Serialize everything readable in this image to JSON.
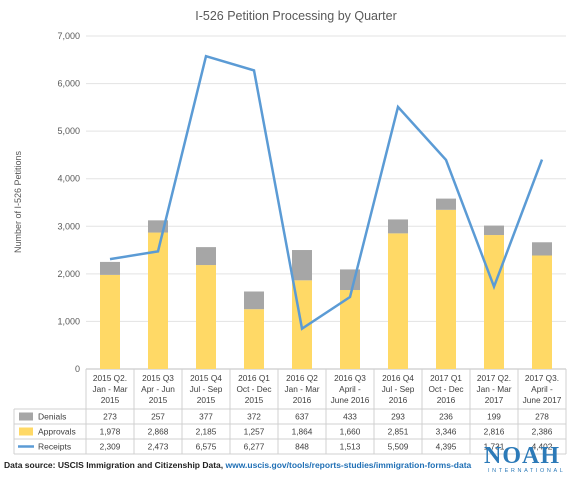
{
  "chart_data": {
    "type": "bar",
    "title": "I-526 Petition Processing by Quarter",
    "ylabel": "Number of I-526 Petitions",
    "ylim": [
      0,
      7000
    ],
    "yticks": [
      "0",
      "1,000",
      "2,000",
      "3,000",
      "4,000",
      "5,000",
      "6,000",
      "7,000"
    ],
    "grid": true,
    "legend_placement": "data-table-left",
    "categories": [
      [
        "2015 Q2.",
        "Jan - Mar",
        "2015"
      ],
      [
        "2015 Q3",
        "Apr - Jun",
        "2015"
      ],
      [
        "2015 Q4",
        "Jul - Sep",
        "2015"
      ],
      [
        "2016 Q1",
        "Oct - Dec",
        "2015"
      ],
      [
        "2016 Q2",
        "Jan - Mar",
        "2016"
      ],
      [
        "2016 Q3",
        "April -",
        "June 2016"
      ],
      [
        "2016 Q4",
        "Jul - Sep",
        "2016"
      ],
      [
        "2017 Q1",
        "Oct - Dec",
        "2016"
      ],
      [
        "2017 Q2.",
        "Jan - Mar",
        "2017"
      ],
      [
        "2017 Q3.",
        "April -",
        "June 2017"
      ]
    ],
    "series": [
      {
        "name": "Denials",
        "kind": "stacked-bar",
        "color": "#a6a6a6",
        "values": [
          273,
          257,
          377,
          372,
          637,
          433,
          293,
          236,
          199,
          278
        ],
        "labels": [
          "273",
          "257",
          "377",
          "372",
          "637",
          "433",
          "293",
          "236",
          "199",
          "278"
        ]
      },
      {
        "name": "Approvals",
        "kind": "stacked-bar",
        "color": "#ffd966",
        "values": [
          1978,
          2868,
          2185,
          1257,
          1864,
          1660,
          2851,
          3346,
          2816,
          2386
        ],
        "labels": [
          "1,978",
          "2,868",
          "2,185",
          "1,257",
          "1,864",
          "1,660",
          "2,851",
          "3,346",
          "2,816",
          "2,386"
        ]
      },
      {
        "name": "Receipts",
        "kind": "line",
        "color": "#5b9bd5",
        "values": [
          2309,
          2473,
          6575,
          6277,
          848,
          1513,
          5509,
          4395,
          1731,
          4402
        ],
        "labels": [
          "2,309",
          "2,473",
          "6,575",
          "6,277",
          "848",
          "1,513",
          "5,509",
          "4,395",
          "1,731",
          "4,402"
        ]
      }
    ]
  },
  "footer": {
    "source_label": "Data source: USCIS Immigration and Citizenship Data,",
    "source_url": "www.uscis.gov/tools/reports-studies/immigration-forms-data"
  },
  "logo": {
    "word": "NOAH",
    "sub": "INTERNATIONAL"
  }
}
